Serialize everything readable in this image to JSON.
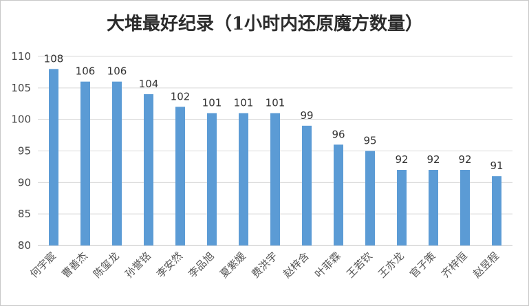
{
  "chart_data": {
    "type": "bar",
    "title": "大堆最好纪录（1小时内还原魔方数量）",
    "categories": [
      "何宇宸",
      "曹善杰",
      "陈玺龙",
      "孙誉铭",
      "李安然",
      "李品旭",
      "夏紫媛",
      "费洪宇",
      "赵梓含",
      "叶菲霖",
      "王若钦",
      "王亦龙",
      "官子策",
      "齐梓恒",
      "赵昱程"
    ],
    "values": [
      108,
      106,
      106,
      104,
      102,
      101,
      101,
      101,
      99,
      96,
      95,
      92,
      92,
      92,
      91
    ],
    "ylim": [
      80,
      110
    ],
    "yticks": [
      80,
      85,
      90,
      95,
      100,
      105,
      110
    ],
    "grid": true,
    "legend": "none",
    "bar_color": "#5b9bd5"
  }
}
